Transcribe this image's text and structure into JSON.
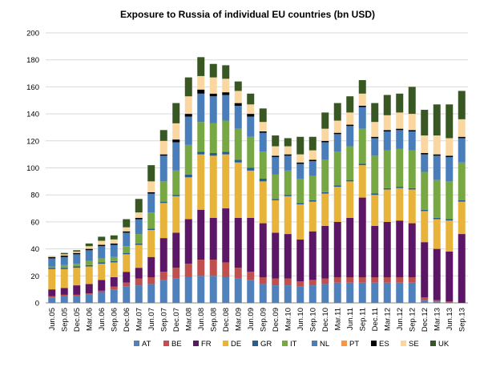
{
  "chart_data": {
    "type": "bar",
    "stacked": true,
    "title": "Exposure to Russia of individual EU countries (bn USD)",
    "xlabel": "",
    "ylabel": "",
    "ylim": [
      0,
      200
    ],
    "yticks": [
      0,
      20,
      40,
      60,
      80,
      100,
      120,
      140,
      160,
      180,
      200
    ],
    "grid": true,
    "legend_position": "bottom",
    "categories": [
      "Jun.05",
      "Sep.05",
      "Dec.05",
      "Mar.06",
      "Jun.06",
      "Sep.06",
      "Dec.06",
      "Mar.07",
      "Jun.07",
      "Sep.07",
      "Dec.07",
      "Mar.08",
      "Jun.08",
      "Sep.08",
      "Dec.08",
      "Mar.09",
      "Jun.09",
      "Sep.09",
      "Dec.09",
      "Mar.10",
      "Jun.10",
      "Sep.10",
      "Dec.10",
      "Mar.11",
      "Jun.11",
      "Sep.11",
      "Dec.11",
      "Mar.12",
      "Jun.12",
      "Sep.12",
      "Dec.12",
      "Mar.13",
      "Jun.13",
      "Sep.13"
    ],
    "tick_labels": [
      "Jun.05",
      "Sep.05",
      "Dec.05",
      "Mar.06",
      "Jun.06",
      "Sep.06",
      "Dec.06",
      "Mar.07",
      "Jun.07",
      "Sep.07",
      "Dec.07",
      "Mar.08",
      "Jun.08",
      "Sep.08",
      "Dec.08",
      "Mar.09",
      "Jun.09",
      "Sep.09",
      "Dec.09",
      "Mar.10",
      "Jun.10",
      "Sep.10",
      "Dec.10",
      "Mar.11",
      "Jun.11",
      "Sep.11",
      "Dec.11",
      "Mar.12",
      "Jun.12",
      "Sep.12",
      "Dec.12",
      "Mar.13",
      "Jun.13",
      "Sep.13"
    ],
    "series": [
      {
        "name": "AT",
        "color": "#4f81bd",
        "values": [
          4,
          5,
          5,
          6,
          8,
          10,
          12,
          13,
          14,
          17,
          18,
          19,
          20,
          20,
          19,
          18,
          17,
          14,
          13,
          13,
          12,
          13,
          14,
          15,
          15,
          15,
          15,
          15,
          15,
          15,
          2,
          1,
          0,
          0
        ]
      },
      {
        "name": "BE",
        "color": "#c0504d",
        "values": [
          1,
          1,
          1,
          1,
          1,
          2,
          3,
          5,
          5,
          6,
          8,
          10,
          12,
          12,
          11,
          8,
          6,
          5,
          5,
          5,
          4,
          4,
          4,
          4,
          4,
          4,
          4,
          4,
          4,
          4,
          2,
          1,
          1,
          0
        ]
      },
      {
        "name": "FR",
        "color": "#5c1666",
        "values": [
          5,
          5,
          7,
          7,
          8,
          7,
          8,
          8,
          15,
          25,
          26,
          33,
          37,
          31,
          40,
          37,
          40,
          40,
          34,
          33,
          31,
          36,
          39,
          41,
          44,
          59,
          38,
          41,
          42,
          40,
          41,
          38,
          37,
          51
        ]
      },
      {
        "name": "DE",
        "color": "#e8b33a",
        "values": [
          15,
          14,
          13,
          13,
          12,
          11,
          13,
          17,
          20,
          26,
          27,
          31,
          41,
          46,
          40,
          41,
          35,
          31,
          24,
          28,
          26,
          22,
          24,
          26,
          27,
          24,
          23,
          24,
          24,
          25,
          23,
          22,
          23,
          24
        ]
      },
      {
        "name": "GR",
        "color": "#255e91",
        "values": [
          1,
          1,
          1,
          1,
          1,
          1,
          1,
          1,
          1,
          1,
          1,
          2,
          2,
          2,
          2,
          2,
          2,
          2,
          1,
          1,
          1,
          1,
          1,
          1,
          1,
          1,
          1,
          1,
          1,
          1,
          1,
          1,
          1,
          1
        ]
      },
      {
        "name": "IT",
        "color": "#77a844",
        "values": [
          1,
          2,
          2,
          3,
          3,
          3,
          5,
          7,
          12,
          15,
          18,
          22,
          22,
          22,
          23,
          23,
          23,
          20,
          18,
          18,
          18,
          18,
          24,
          25,
          25,
          26,
          28,
          28,
          28,
          28,
          28,
          28,
          28,
          28
        ]
      },
      {
        "name": "NL",
        "color": "#4a7ebb",
        "values": [
          6,
          6,
          7,
          8,
          9,
          9,
          10,
          11,
          14,
          19,
          21,
          21,
          21,
          20,
          19,
          17,
          15,
          14,
          13,
          11,
          11,
          11,
          13,
          13,
          15,
          16,
          13,
          14,
          14,
          14,
          13,
          18,
          18,
          18
        ]
      },
      {
        "name": "PT",
        "color": "#f79646",
        "values": [
          0,
          0,
          0,
          0,
          0,
          0,
          0,
          0,
          0,
          0,
          0,
          0,
          0,
          0,
          0,
          0,
          0,
          0,
          0,
          0,
          0,
          0,
          0,
          0,
          0,
          0,
          0,
          0,
          0,
          0,
          0,
          0,
          0,
          0
        ]
      },
      {
        "name": "ES",
        "color": "#000000",
        "values": [
          1,
          1,
          1,
          1,
          1,
          1,
          1,
          1,
          1,
          1,
          2,
          2,
          3,
          2,
          2,
          2,
          2,
          1,
          1,
          1,
          1,
          1,
          1,
          1,
          1,
          1,
          1,
          1,
          1,
          1,
          1,
          1,
          1,
          1
        ]
      },
      {
        "name": "SE",
        "color": "#fad7a0",
        "values": [
          1,
          1,
          1,
          2,
          3,
          3,
          3,
          4,
          8,
          10,
          12,
          13,
          10,
          12,
          10,
          9,
          7,
          7,
          7,
          6,
          6,
          7,
          9,
          9,
          9,
          9,
          11,
          11,
          12,
          12,
          13,
          14,
          13,
          13
        ]
      },
      {
        "name": "UK",
        "color": "#385723",
        "values": [
          0,
          1,
          1,
          2,
          3,
          3,
          6,
          10,
          12,
          8,
          15,
          14,
          14,
          10,
          10,
          7,
          8,
          10,
          8,
          6,
          13,
          10,
          12,
          13,
          12,
          10,
          14,
          15,
          14,
          20,
          19,
          23,
          25,
          21
        ]
      }
    ]
  }
}
